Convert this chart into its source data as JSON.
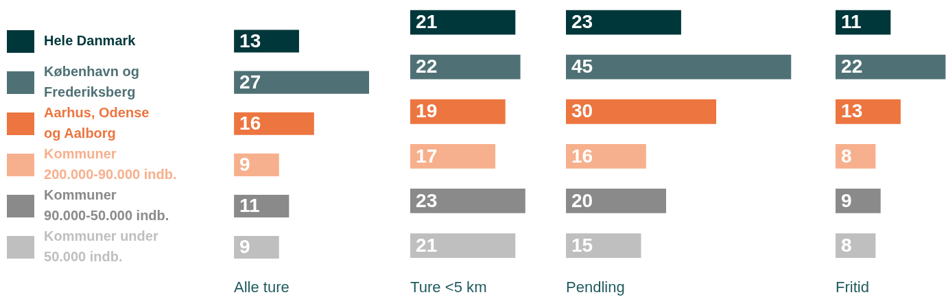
{
  "chart_data": [
    {
      "type": "bar",
      "orientation": "horizontal",
      "categories": [
        "Hele Danmark",
        "København og Frederiksberg",
        "Aarhus, Odense og Aalborg",
        "Kommuner 200.000-90.000 indb.",
        "Kommuner 90.000-50.000 indb.",
        "Kommuner under 50.000 indb."
      ],
      "values": [
        13,
        27,
        16,
        9,
        11,
        9
      ],
      "colors": [
        "#00373a",
        "#4f7175",
        "#ec7540",
        "#f7b08d",
        "#8a8a8a",
        "#bfbfbf"
      ],
      "xlabel": "Alle ture",
      "data_labels": true,
      "tick_labels": "y"
    },
    {
      "type": "bar",
      "orientation": "horizontal",
      "categories": [
        null,
        null,
        null,
        null,
        null,
        null
      ],
      "values": [
        21,
        22,
        19,
        17,
        23,
        21
      ],
      "colors": [
        "#00373a",
        "#4f7175",
        "#ec7540",
        "#f7b08d",
        "#8a8a8a",
        "#bfbfbf"
      ],
      "xlabel": "Ture <5 km",
      "data_labels": true,
      "tick_labels": false
    },
    {
      "type": "bar",
      "orientation": "horizontal",
      "categories": [
        null,
        null,
        null,
        null,
        null,
        null
      ],
      "values": [
        23,
        45,
        30,
        16,
        20,
        15
      ],
      "colors": [
        "#00373a",
        "#4f7175",
        "#ec7540",
        "#f7b08d",
        "#8a8a8a",
        "#bfbfbf"
      ],
      "xlabel": "Pendling",
      "data_labels": true,
      "tick_labels": false
    },
    {
      "type": "bar",
      "orientation": "horizontal",
      "categories": [
        null,
        null,
        null,
        null,
        null,
        null
      ],
      "values": [
        11,
        22,
        13,
        8,
        9,
        8
      ],
      "colors": [
        "#00373a",
        "#4f7175",
        "#ec7540",
        "#f7b08d",
        "#8a8a8a",
        "#bfbfbf"
      ],
      "xlabel": "Fritid",
      "data_labels": true,
      "tick_labels": false
    }
  ]
}
